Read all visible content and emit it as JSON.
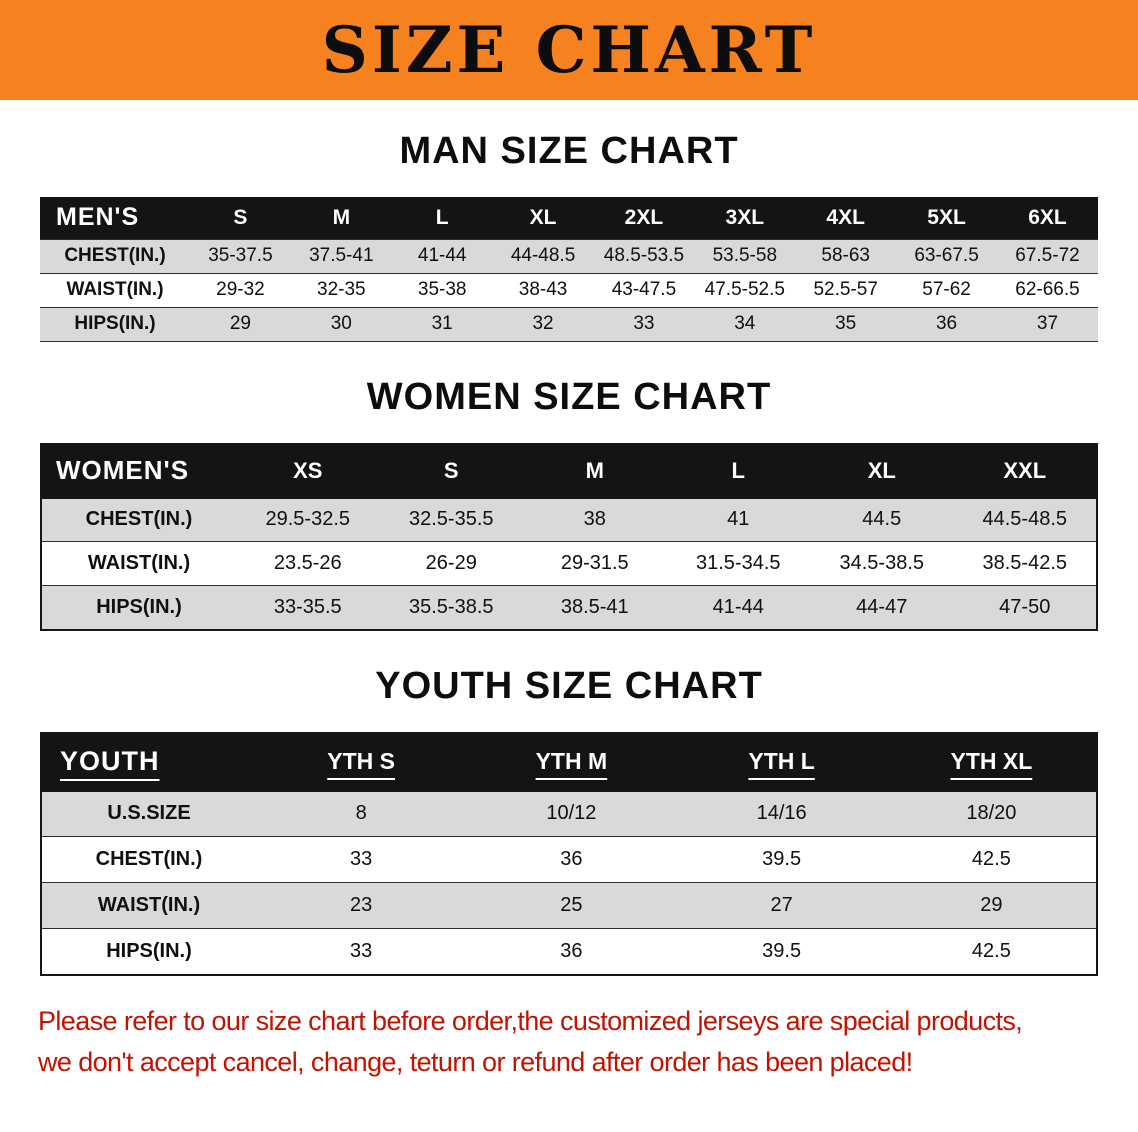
{
  "banner": {
    "title": "SIZE CHART"
  },
  "colors": {
    "banner_bg": "#F6821F",
    "header_bg": "#141414",
    "stripe": "#d9d9d9",
    "footer_text": "#C41200"
  },
  "sections": [
    {
      "heading": "MAN SIZE CHART",
      "table": {
        "header": [
          "MEN'S",
          "S",
          "M",
          "L",
          "XL",
          "2XL",
          "3XL",
          "4XL",
          "5XL",
          "6XL"
        ],
        "rows": [
          [
            "CHEST(IN.)",
            "35-37.5",
            "37.5-41",
            "41-44",
            "44-48.5",
            "48.5-53.5",
            "53.5-58",
            "58-63",
            "63-67.5",
            "67.5-72"
          ],
          [
            "WAIST(IN.)",
            "29-32",
            "32-35",
            "35-38",
            "38-43",
            "43-47.5",
            "47.5-52.5",
            "52.5-57",
            "57-62",
            "62-66.5"
          ],
          [
            "HIPS(IN.)",
            "29",
            "30",
            "31",
            "32",
            "33",
            "34",
            "35",
            "36",
            "37"
          ]
        ]
      }
    },
    {
      "heading": "WOMEN SIZE CHART",
      "table": {
        "header": [
          "WOMEN'S",
          "XS",
          "S",
          "M",
          "L",
          "XL",
          "XXL"
        ],
        "rows": [
          [
            "CHEST(IN.)",
            "29.5-32.5",
            "32.5-35.5",
            "38",
            "41",
            "44.5",
            "44.5-48.5"
          ],
          [
            "WAIST(IN.)",
            "23.5-26",
            "26-29",
            "29-31.5",
            "31.5-34.5",
            "34.5-38.5",
            "38.5-42.5"
          ],
          [
            "HIPS(IN.)",
            "33-35.5",
            "35.5-38.5",
            "38.5-41",
            "41-44",
            "44-47",
            "47-50"
          ]
        ]
      }
    },
    {
      "heading": "YOUTH SIZE CHART",
      "table": {
        "header": [
          "YOUTH",
          "YTH S",
          "YTH M",
          "YTH L",
          "YTH XL"
        ],
        "rows": [
          [
            "U.S.SIZE",
            "8",
            "10/12",
            "14/16",
            "18/20"
          ],
          [
            "CHEST(IN.)",
            "33",
            "36",
            "39.5",
            "42.5"
          ],
          [
            "WAIST(IN.)",
            "23",
            "25",
            "27",
            "29"
          ],
          [
            "HIPS(IN.)",
            "33",
            "36",
            "39.5",
            "42.5"
          ]
        ]
      }
    }
  ],
  "footer": {
    "line1": "Please refer to our size chart before order,the customized jerseys are special products,",
    "line2": "we don't accept cancel, change, teturn or refund after order has been placed!"
  }
}
